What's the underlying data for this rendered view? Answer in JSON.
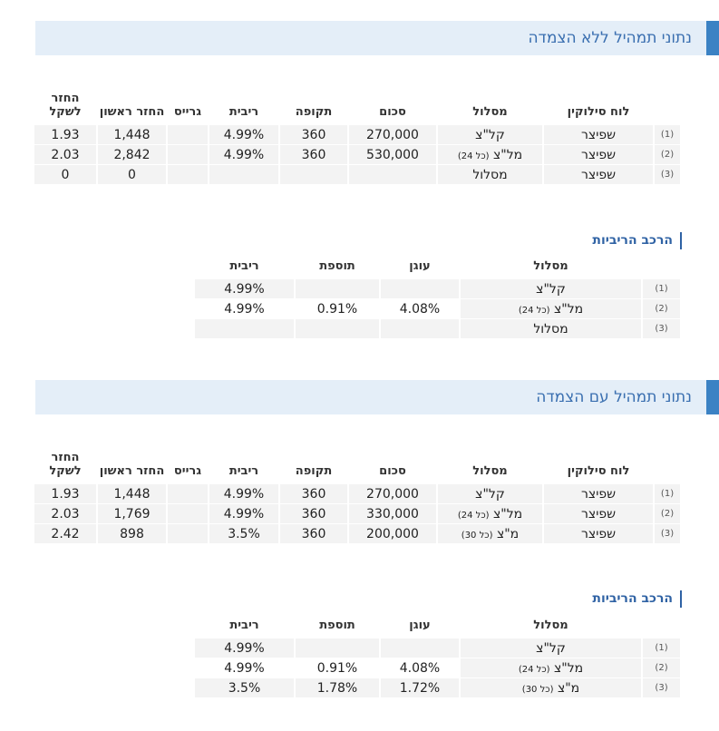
{
  "section1": {
    "title": "נתוני תמהיל ללא הצמדה",
    "headers": {
      "schedule": "לוח סילוקין",
      "track": "מסלול",
      "amount": "סכום",
      "period": "תקופה",
      "rate": "ריבית",
      "grace": "גרייס",
      "first_payment": "החזר ראשון",
      "return_per_shekel": "החזר לשקל"
    },
    "rows": [
      {
        "idx": "(1)",
        "schedule": "שפיצר",
        "track": "קל\"צ",
        "track_note": "",
        "amount": "270,000",
        "period": "360",
        "rate": "4.99%",
        "grace": "",
        "first_payment": "1,448",
        "return_per_shekel": "1.93"
      },
      {
        "idx": "(2)",
        "schedule": "שפיצר",
        "track": "מל\"צ",
        "track_note": "(כל 24)",
        "amount": "530,000",
        "period": "360",
        "rate": "4.99%",
        "grace": "",
        "first_payment": "2,842",
        "return_per_shekel": "2.03"
      },
      {
        "idx": "(3)",
        "schedule": "שפיצר",
        "track": "מסלול",
        "track_note": "",
        "amount": "",
        "period": "",
        "rate": "",
        "grace": "",
        "first_payment": "0",
        "return_per_shekel": "0"
      }
    ],
    "rate_composition": {
      "title": "הרכב הריביות",
      "headers": {
        "track": "מסלול",
        "anchor": "עוגן",
        "margin": "תוספת",
        "rate": "ריבית"
      },
      "rows": [
        {
          "idx": "(1)",
          "track": "קל\"צ",
          "track_note": "",
          "anchor": "",
          "margin": "",
          "rate": "4.99%"
        },
        {
          "idx": "(2)",
          "track": "מל\"צ",
          "track_note": "(כל 24)",
          "anchor": "4.08%",
          "margin": "0.91%",
          "rate": "4.99%"
        },
        {
          "idx": "(3)",
          "track": "מסלול",
          "track_note": "",
          "anchor": "",
          "margin": "",
          "rate": ""
        }
      ]
    }
  },
  "section2": {
    "title": "נתוני תמהיל עם הצמדה",
    "headers": {
      "schedule": "לוח סילוקין",
      "track": "מסלול",
      "amount": "סכום",
      "period": "תקופה",
      "rate": "ריבית",
      "grace": "גרייס",
      "first_payment": "החזר ראשון",
      "return_per_shekel": "החזר לשקל"
    },
    "rows": [
      {
        "idx": "(1)",
        "schedule": "שפיצר",
        "track": "קל\"צ",
        "track_note": "",
        "amount": "270,000",
        "period": "360",
        "rate": "4.99%",
        "grace": "",
        "first_payment": "1,448",
        "return_per_shekel": "1.93"
      },
      {
        "idx": "(2)",
        "schedule": "שפיצר",
        "track": "מל\"צ",
        "track_note": "(כל 24)",
        "amount": "330,000",
        "period": "360",
        "rate": "4.99%",
        "grace": "",
        "first_payment": "1,769",
        "return_per_shekel": "2.03"
      },
      {
        "idx": "(3)",
        "schedule": "שפיצר",
        "track": "מ\"צ",
        "track_note": "(כל 30)",
        "amount": "200,000",
        "period": "360",
        "rate": "3.5%",
        "grace": "",
        "first_payment": "898",
        "return_per_shekel": "2.42"
      }
    ],
    "rate_composition": {
      "title": "הרכב הריביות",
      "headers": {
        "track": "מסלול",
        "anchor": "עוגן",
        "margin": "תוספת",
        "rate": "ריבית"
      },
      "rows": [
        {
          "idx": "(1)",
          "track": "קל\"צ",
          "track_note": "",
          "anchor": "",
          "margin": "",
          "rate": "4.99%"
        },
        {
          "idx": "(2)",
          "track": "מל\"צ",
          "track_note": "(כל 24)",
          "anchor": "4.08%",
          "margin": "0.91%",
          "rate": "4.99%"
        },
        {
          "idx": "(3)",
          "track": "מ\"צ",
          "track_note": "(כל 30)",
          "anchor": "1.72%",
          "margin": "1.78%",
          "rate": "3.5%"
        }
      ]
    }
  }
}
